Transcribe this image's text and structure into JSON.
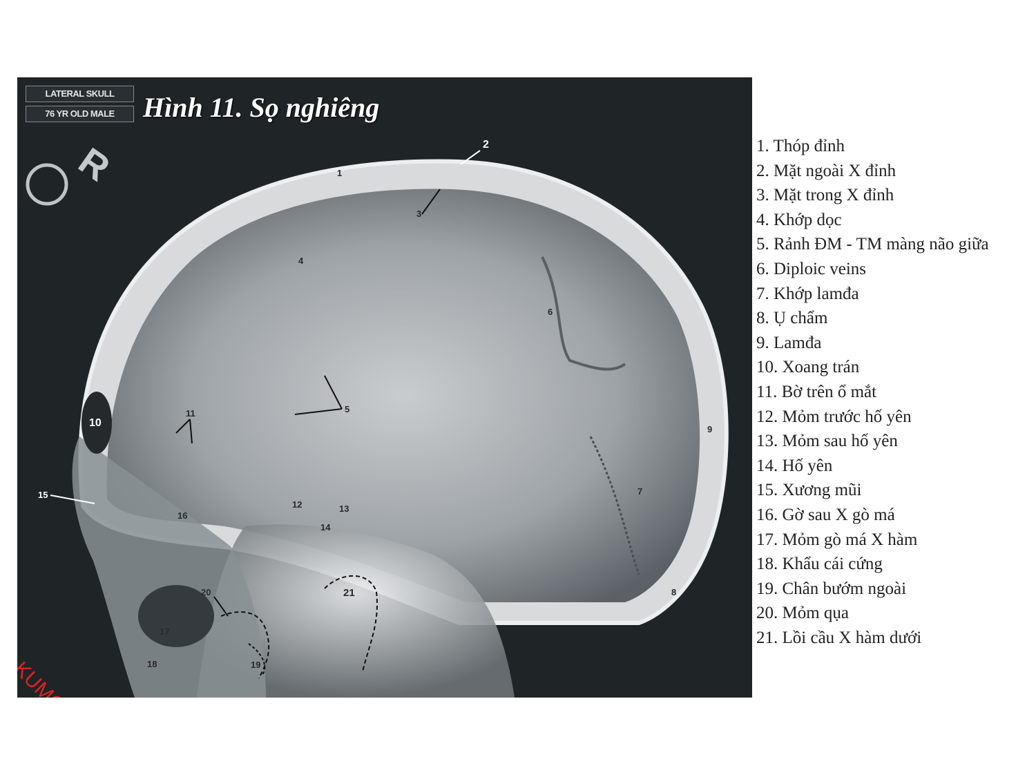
{
  "image": {
    "tag_view": "LATERAL SKULL",
    "tag_patient": "76 YR OLD MALE",
    "title": "Hình 11.  Sọ nghiêng",
    "watermark": "KUMC",
    "markers": [
      "1",
      "2",
      "3",
      "4",
      "5",
      "6",
      "7",
      "8",
      "9",
      "10",
      "11",
      "12",
      "13",
      "14",
      "15",
      "16",
      "17",
      "18",
      "19",
      "20",
      "21"
    ]
  },
  "legend": [
    "1. Thóp đỉnh",
    "2. Mặt ngoài X đỉnh",
    "3. Mặt trong X đỉnh",
    "4. Khớp dọc",
    "5. Rảnh ĐM - TM màng não giữa",
    "6. Diploic veins",
    "7. Khớp lamđa",
    "8. Ụ chẩm",
    "9. Lamđa",
    "10. Xoang trán",
    "11. Bờ trên ổ mắt",
    "12. Mỏm trước hố yên",
    "13. Mỏm sau hố yên",
    "14. Hố yên",
    "15. Xương mũi",
    "16. Gờ sau X gò má",
    "17. Mỏm gò má X hàm",
    "18. Khẩu cái cứng",
    "19. Chân bướm ngoài",
    "20. Mỏm qụa",
    "21. Lồi cầu X hàm dưới"
  ]
}
